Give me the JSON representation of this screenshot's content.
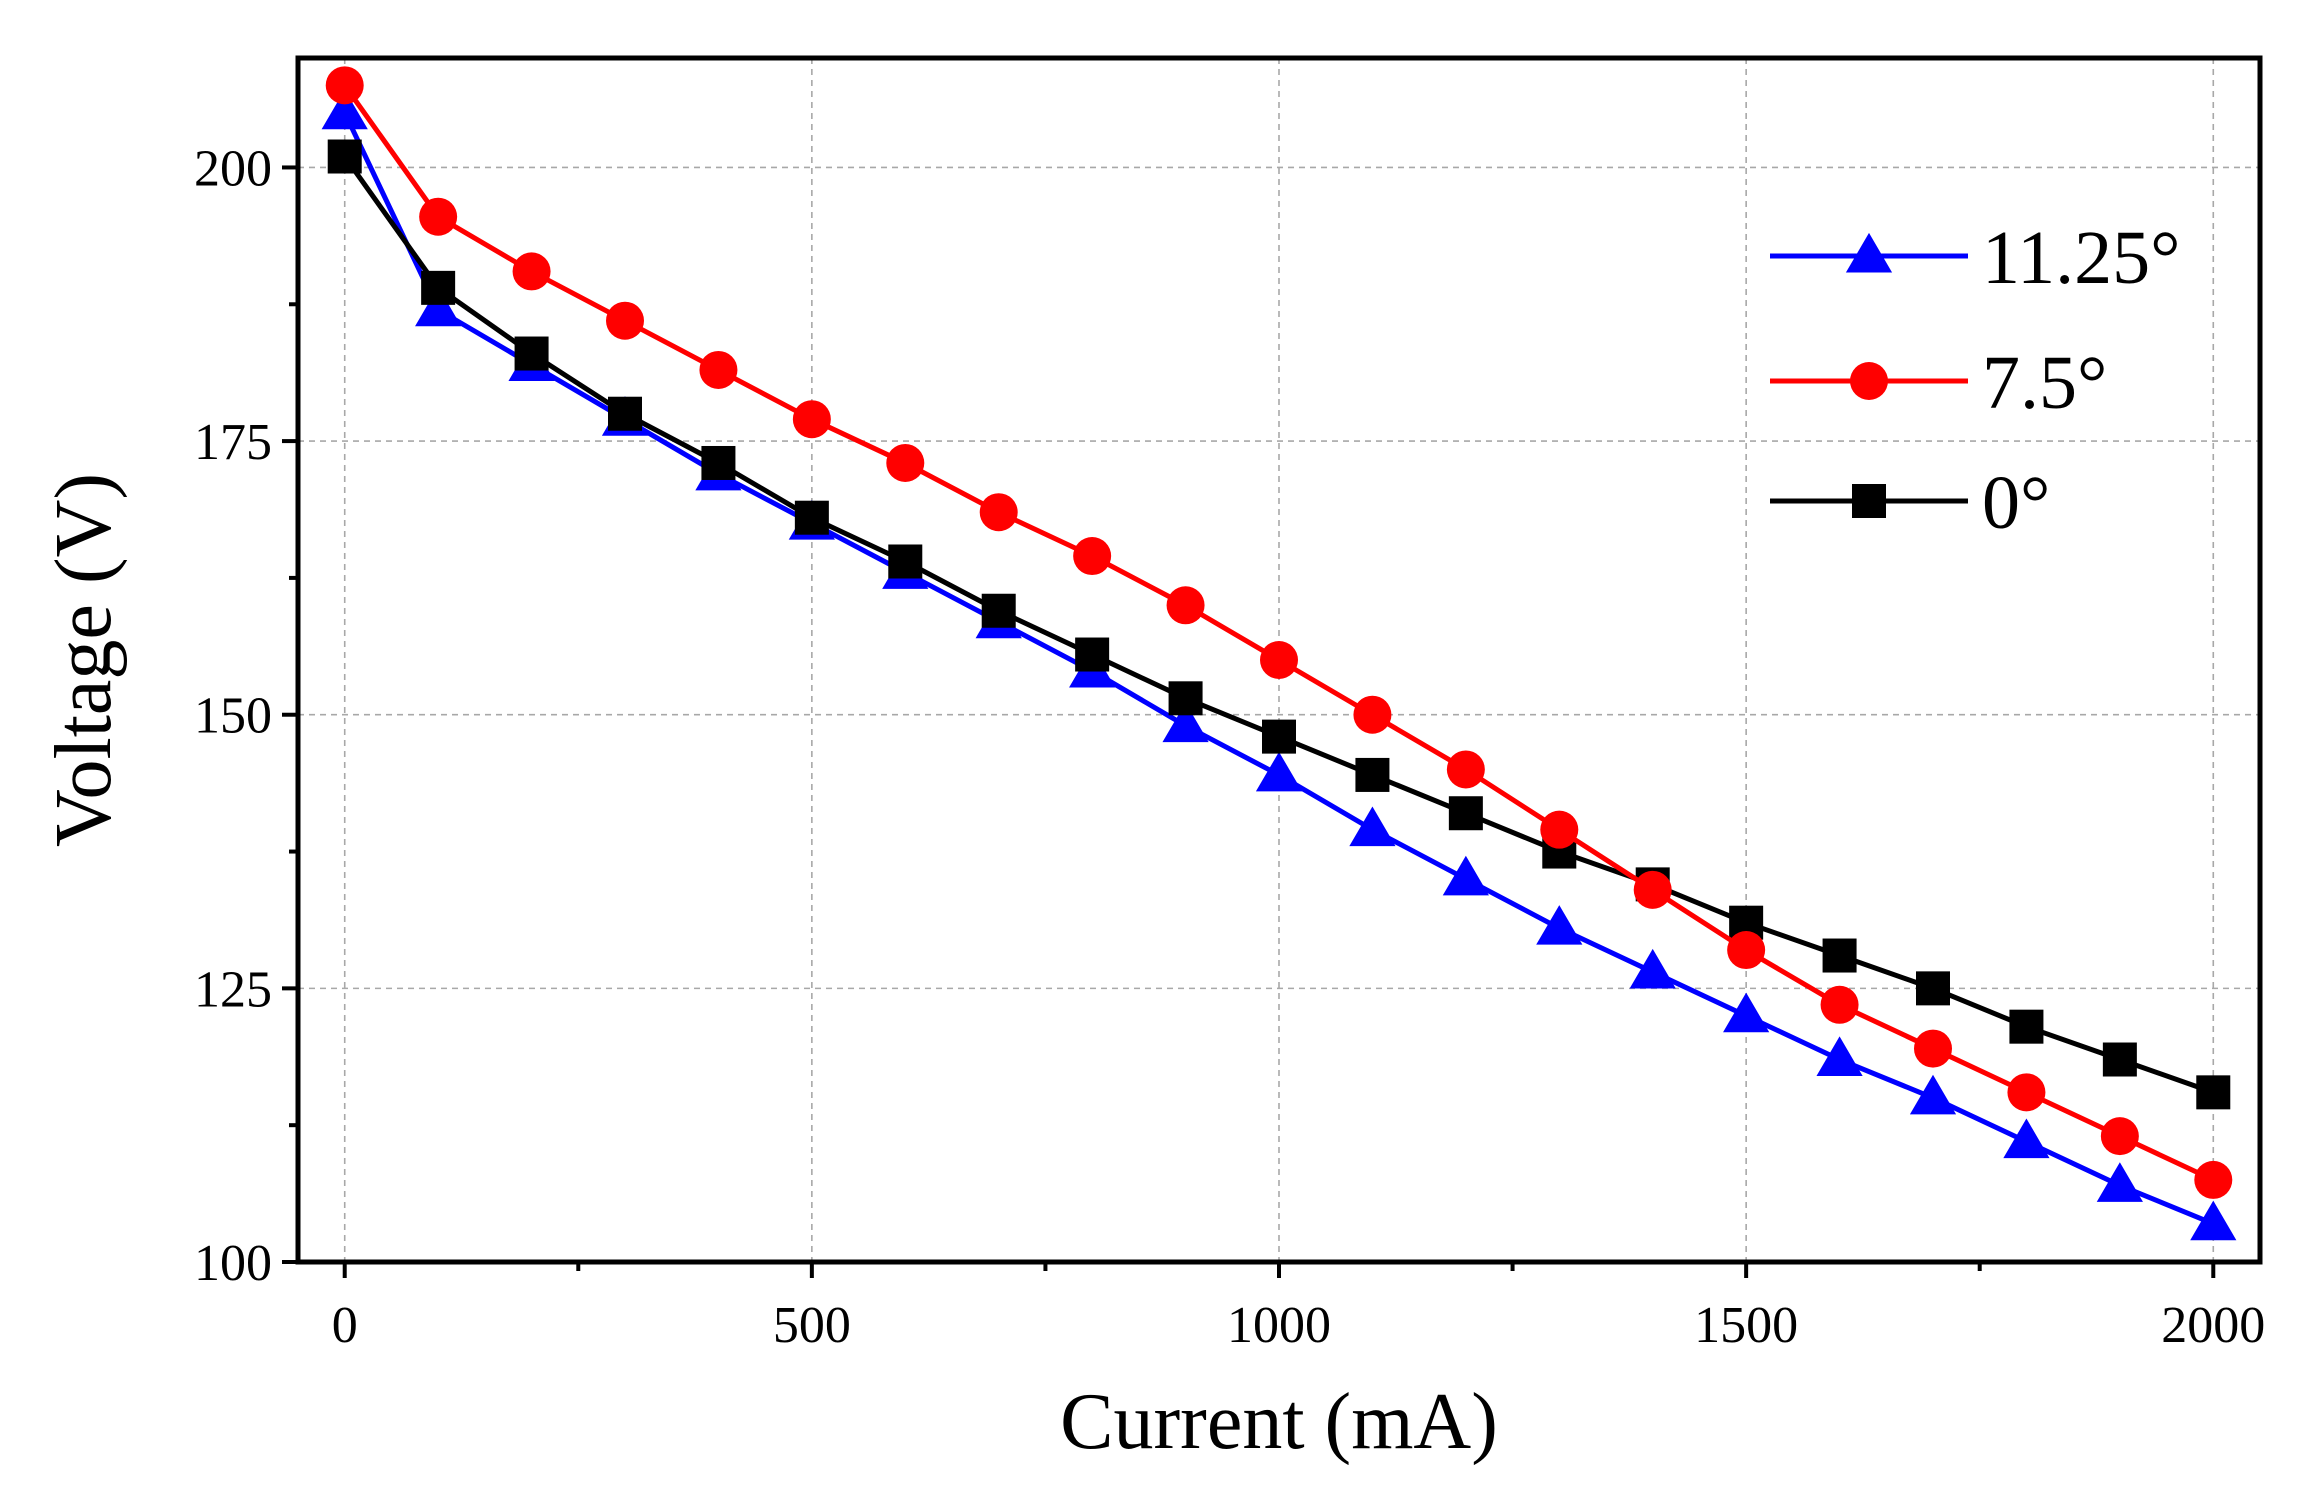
{
  "chart_data": {
    "type": "line",
    "title": "",
    "xlabel": "Current (mA)",
    "ylabel": "Voltage (V)",
    "xlim": [
      -50,
      2050
    ],
    "ylim": [
      100,
      210
    ],
    "x_ticks": [
      0,
      500,
      1000,
      1500,
      2000
    ],
    "y_ticks": [
      100,
      125,
      150,
      175,
      200
    ],
    "grid": true,
    "legend_position": "top-right",
    "x": [
      0,
      100,
      200,
      300,
      400,
      500,
      600,
      700,
      800,
      900,
      1000,
      1100,
      1200,
      1300,
      1400,
      1500,
      1600,
      1700,
      1800,
      1900,
      2000
    ],
    "series": [
      {
        "name": "11.25°",
        "color": "#0000ff",
        "marker": "triangle",
        "values": [
          205,
          187,
          182,
          177,
          172,
          167.5,
          163,
          158.5,
          154,
          149,
          144.5,
          139.5,
          135,
          130.5,
          126.5,
          122.5,
          118.5,
          115,
          111,
          107,
          103.5
        ]
      },
      {
        "name": "7.5°",
        "color": "#ff0000",
        "marker": "circle",
        "values": [
          207.5,
          195.5,
          190.5,
          186,
          181.5,
          177,
          173,
          168.5,
          164.5,
          160,
          155,
          150,
          145,
          139.5,
          134,
          128.5,
          123.5,
          119.5,
          115.5,
          111.5,
          107.5
        ]
      },
      {
        "name": "0°",
        "color": "#000000",
        "marker": "square",
        "values": [
          201,
          189,
          183,
          177.5,
          173,
          168,
          164,
          159.5,
          155.5,
          151.5,
          148,
          144.5,
          141,
          137.5,
          134.5,
          131,
          128,
          125,
          121.5,
          118.5,
          115.5
        ]
      }
    ]
  }
}
